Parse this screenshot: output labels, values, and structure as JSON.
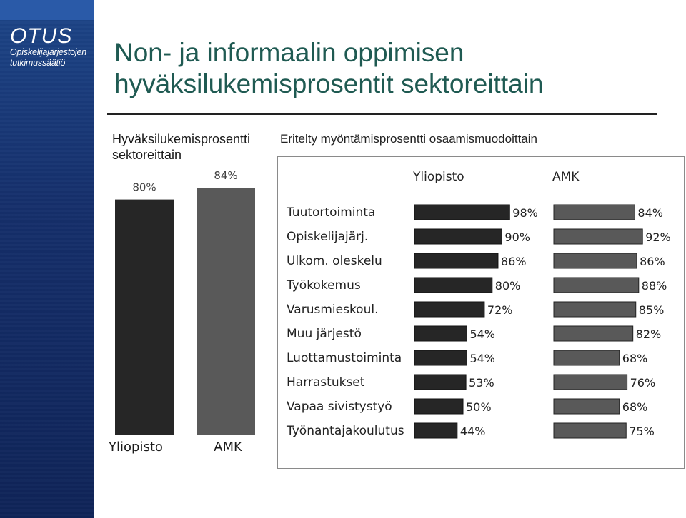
{
  "logo": {
    "main": "OTUS",
    "line1": "Opiskelijajärjestöjen",
    "line2": "tutkimussäätiö"
  },
  "title": {
    "line1": "Non- ja informaalin oppimisen",
    "line2": "hyväksilukemisprosentit sektoreittain"
  },
  "left_chart_heading": {
    "line1": "Hyväksilukemisprosentti",
    "line2": "sektoreittain"
  },
  "right_chart_heading": "Eritelty myöntämisprosentti osaamismuodoittain",
  "colors": {
    "yliopisto": "#262626",
    "amk": "#595959",
    "title": "#1f5a52"
  },
  "chart_data": [
    {
      "type": "bar",
      "title": "",
      "categories": [
        "Yliopisto",
        "AMK"
      ],
      "values": [
        80,
        84
      ],
      "value_labels": [
        "80%",
        "84%"
      ],
      "ylim": [
        0,
        100
      ],
      "grid": false
    },
    {
      "type": "bar",
      "orientation": "horizontal",
      "categories": [
        "Tuutortoiminta",
        "Opiskelijajärj.",
        "Ulkom. oleskelu",
        "Työkokemus",
        "Varusmieskoul.",
        "Muu järjestö",
        "Luottamustoiminta",
        "Harrastukset",
        "Vapaa sivistystyö",
        "Työnantajakoulutus"
      ],
      "series": [
        {
          "name": "Yliopisto",
          "values": [
            98,
            90,
            86,
            80,
            72,
            54,
            54,
            53,
            50,
            44
          ],
          "value_labels": [
            "98%",
            "90%",
            "86%",
            "80%",
            "72%",
            "54%",
            "54%",
            "53%",
            "50%",
            "44%"
          ]
        },
        {
          "name": "AMK",
          "values": [
            84,
            92,
            86,
            88,
            85,
            82,
            68,
            76,
            68,
            75
          ],
          "value_labels": [
            "84%",
            "92%",
            "86%",
            "88%",
            "85%",
            "82%",
            "68%",
            "76%",
            "68%",
            "75%"
          ]
        }
      ],
      "xlim": [
        0,
        100
      ],
      "grid": false
    }
  ]
}
